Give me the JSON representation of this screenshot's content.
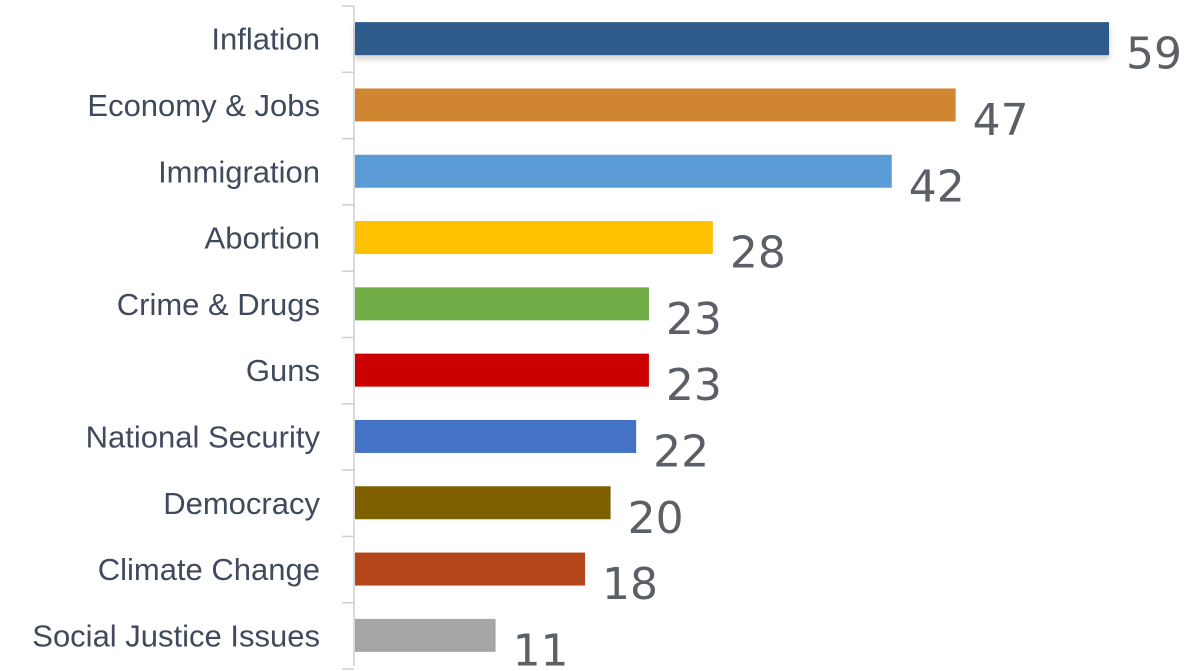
{
  "chart_data": {
    "type": "bar",
    "orientation": "horizontal",
    "title": "",
    "xlabel": "",
    "ylabel": "",
    "grid": false,
    "legend": "none",
    "xlim": [
      0,
      59
    ],
    "categories": [
      "Inflation",
      "Economy & Jobs",
      "Immigration",
      "Abortion",
      "Crime & Drugs",
      "Guns",
      "National Security",
      "Democracy",
      "Climate Change",
      "Social Justice Issues"
    ],
    "values": [
      59,
      47,
      42,
      28,
      23,
      23,
      22,
      20,
      18,
      11
    ],
    "data_labels": [
      "59",
      "47",
      "42",
      "28",
      "23",
      "23",
      "22",
      "20",
      "18",
      "11"
    ],
    "colors": [
      "#2e5a8c",
      "#d08630",
      "#5a9bd5",
      "#ffc000",
      "#70ad47",
      "#cc0000",
      "#4472c4",
      "#7f6000",
      "#b5451b",
      "#a6a6a6"
    ]
  }
}
